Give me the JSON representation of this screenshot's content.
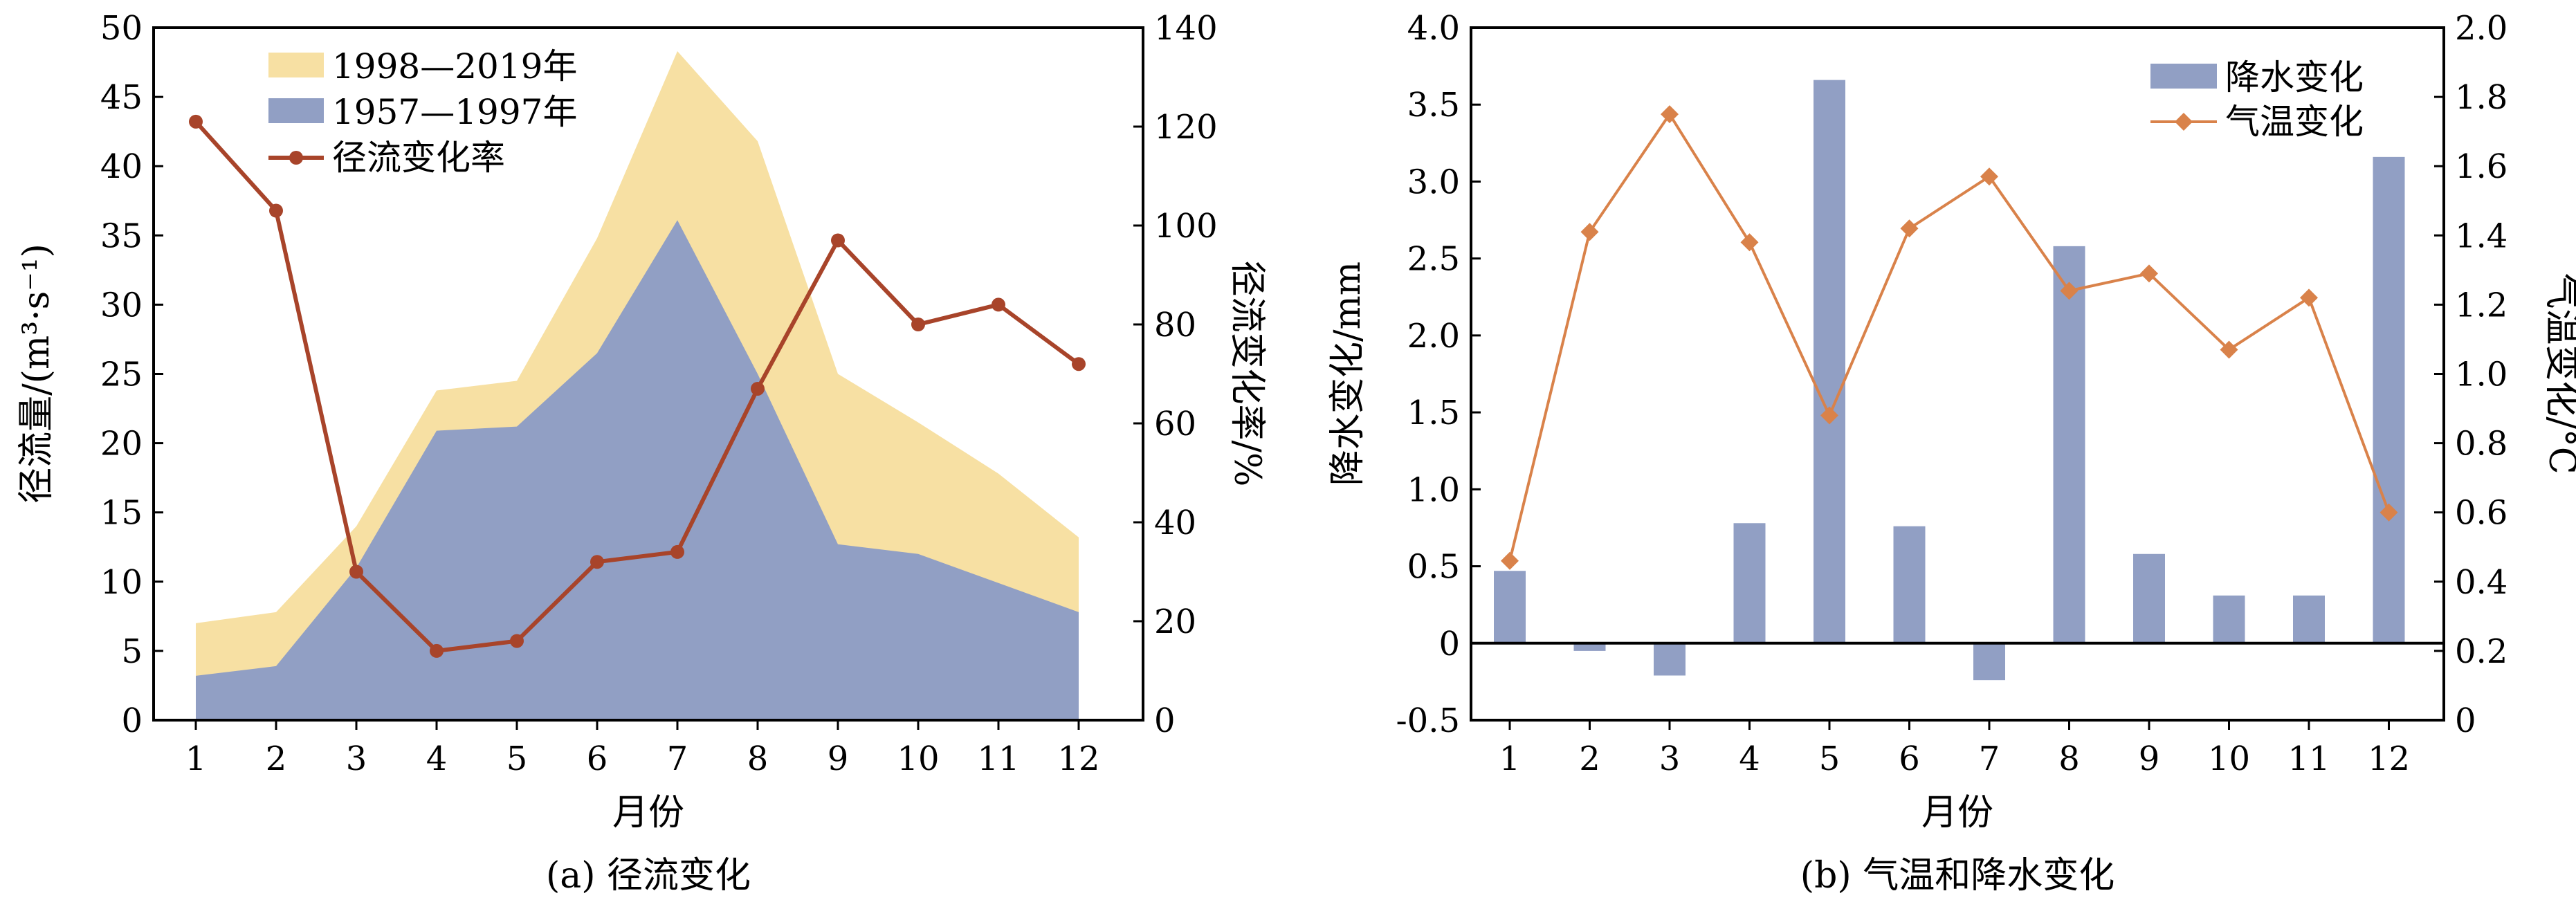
{
  "chart_data": [
    {
      "type": "area",
      "caption": "(a) 径流变化",
      "xlabel": "月份",
      "ylabel": "径流量/(m³·s⁻¹)",
      "y2label": "径流变化率/%",
      "categories": [
        "1",
        "2",
        "3",
        "4",
        "5",
        "6",
        "7",
        "8",
        "9",
        "10",
        "11",
        "12"
      ],
      "ylim": [
        0,
        50
      ],
      "yticks": [
        0,
        5,
        10,
        15,
        20,
        25,
        30,
        35,
        40,
        45,
        50
      ],
      "y2lim": [
        0,
        140
      ],
      "y2ticks": [
        0,
        20,
        40,
        60,
        80,
        100,
        120,
        140
      ],
      "legend_position": "top-left",
      "series": [
        {
          "name": "1998—2019年",
          "type": "area",
          "axis": "left",
          "color": "#F7E0A3",
          "values": [
            7.0,
            7.8,
            14.0,
            23.8,
            24.5,
            34.8,
            48.3,
            41.8,
            25.0,
            21.5,
            17.8,
            13.2
          ]
        },
        {
          "name": "1957—1997年",
          "type": "area",
          "axis": "left",
          "color": "#919FC4",
          "values": [
            3.2,
            3.9,
            11.0,
            20.9,
            21.2,
            26.5,
            36.1,
            25.0,
            12.7,
            12.0,
            9.9,
            7.8
          ]
        },
        {
          "name": "径流变化率",
          "type": "line",
          "axis": "right",
          "color": "#A8442A",
          "values": [
            121,
            103,
            30,
            14,
            16,
            32,
            34,
            67,
            97,
            80,
            84,
            72
          ]
        }
      ]
    },
    {
      "type": "bar",
      "caption": "(b) 气温和降水变化",
      "xlabel": "月份",
      "ylabel": "降水变化/mm",
      "y2label": "气温变化/°C",
      "categories": [
        "1",
        "2",
        "3",
        "4",
        "5",
        "6",
        "7",
        "8",
        "9",
        "10",
        "11",
        "12"
      ],
      "ylim": [
        -0.5,
        4.0
      ],
      "yticks": [
        "-0.5",
        "0",
        "0.5",
        "1.0",
        "1.5",
        "2.0",
        "2.5",
        "3.0",
        "3.5",
        "4.0"
      ],
      "y2lim": [
        0,
        2.0
      ],
      "y2ticks": [
        "0",
        "0.2",
        "0.4",
        "0.6",
        "0.8",
        "1.0",
        "1.2",
        "1.4",
        "1.6",
        "1.8",
        "2.0"
      ],
      "legend_position": "top-right",
      "series": [
        {
          "name": "降水变化",
          "type": "bar",
          "axis": "left",
          "color": "#919FC4",
          "values": [
            0.47,
            -0.05,
            -0.21,
            0.78,
            3.66,
            0.76,
            -0.24,
            2.58,
            0.58,
            0.31,
            0.31,
            3.16
          ]
        },
        {
          "name": "气温变化",
          "type": "line",
          "axis": "right",
          "color": "#D9824A",
          "values": [
            0.46,
            1.41,
            1.75,
            1.38,
            0.88,
            1.42,
            1.57,
            1.24,
            1.29,
            1.07,
            1.22,
            0.6
          ]
        }
      ]
    }
  ]
}
